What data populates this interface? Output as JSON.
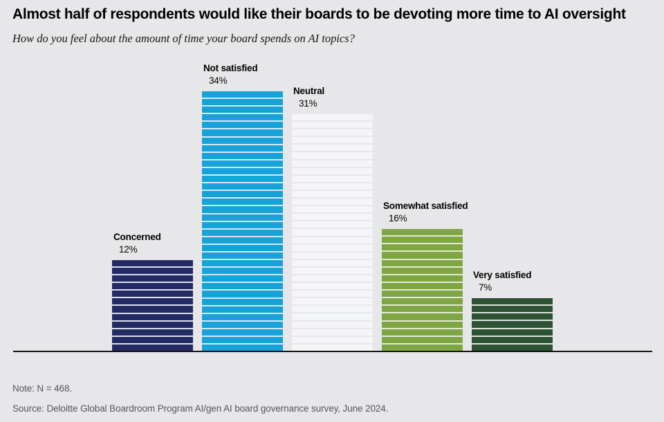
{
  "header": {
    "title": "Almost half of respondents would like their boards to be devoting more time to AI oversight",
    "question": "How do you feel about the amount of time your board spends on AI topics?"
  },
  "chart_data": {
    "type": "bar",
    "title": "Almost half of respondents would like their boards to be devoting more time to AI oversight",
    "subtitle": "How do you feel about the amount of time your board spends on AI topics?",
    "categories": [
      "Concerned",
      "Not satisfied",
      "Neutral",
      "Somewhat satisfied",
      "Very satisfied"
    ],
    "values": [
      12,
      34,
      31,
      16,
      7
    ],
    "unit": "%",
    "value_labels": [
      "12%",
      "34%",
      "31%",
      "16%",
      "7%"
    ],
    "bar_colors": [
      "#242b64",
      "#17a2da",
      "#f4f5f6",
      "#7ea744",
      "#2d5234"
    ],
    "bar_gap_colors": [
      "#dcdee9",
      "#d6e9f4",
      "#e7e7e9",
      "#e4e9d8",
      "#dee4de"
    ],
    "stripes_per_percent": 1,
    "xlabel": "",
    "ylabel": "",
    "ylim": [
      0,
      34
    ],
    "grid": false,
    "legend": "none",
    "data_label_position": "above-bar"
  },
  "footer": {
    "note": "Note: N = 468.",
    "source": "Source: Deloitte Global Boardroom Program AI/gen AI board governance survey, June 2024."
  },
  "colors": {
    "background": "#e7e7e9",
    "axis": "#121212",
    "title_text": "#000000",
    "footer_text": "#54565a"
  }
}
